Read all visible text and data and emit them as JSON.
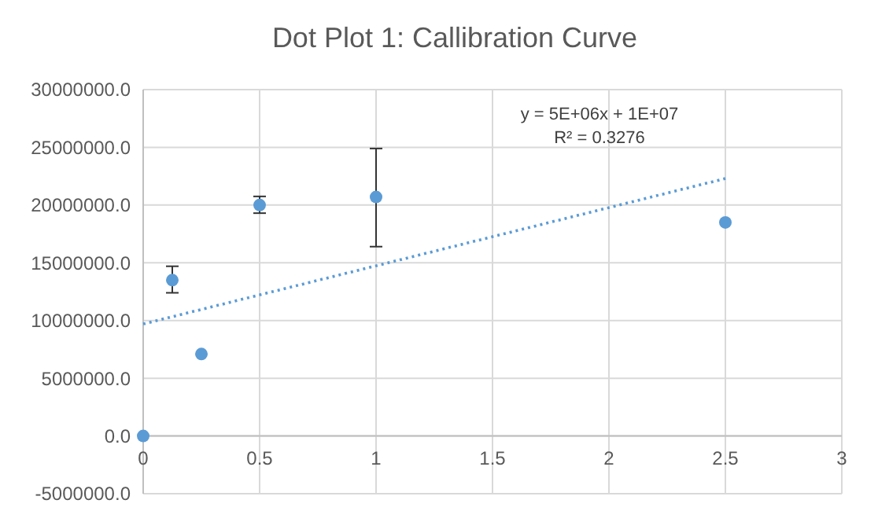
{
  "chart_data": {
    "type": "scatter",
    "title": "Dot Plot 1: Callibration Curve",
    "marker": "circle",
    "grid": true,
    "xlim": [
      0,
      3
    ],
    "xticks": [
      0,
      0.5,
      1,
      1.5,
      2,
      2.5,
      3
    ],
    "ylim": [
      -5000000,
      30000000
    ],
    "yticks": [
      {
        "value": -5000000,
        "label": "-5000000.0"
      },
      {
        "value": 0,
        "label": "0.0"
      },
      {
        "value": 5000000,
        "label": "5000000.0"
      },
      {
        "value": 10000000,
        "label": "10000000.0"
      },
      {
        "value": 15000000,
        "label": "15000000.0"
      },
      {
        "value": 20000000,
        "label": "20000000.0"
      },
      {
        "value": 25000000,
        "label": "25000000.0"
      },
      {
        "value": 30000000,
        "label": "30000000.0"
      }
    ],
    "series": [
      {
        "color": "#5b9bd5",
        "x": [
          0,
          0.125,
          0.25,
          0.5,
          1,
          2.5
        ],
        "values": [
          0,
          13500000,
          7100000,
          20000000,
          20700000,
          18500000
        ],
        "errors": [
          null,
          [
            12400000,
            14700000
          ],
          null,
          [
            19300000,
            20750000
          ],
          [
            16400000,
            24900000
          ],
          null
        ]
      },
      {
        "type": "line",
        "color": "#5b9bd5",
        "line_style": "dotted",
        "marker": "none",
        "x": [
          0,
          2.5
        ],
        "values": [
          9700000,
          22300000
        ]
      }
    ],
    "annotations": [
      "y = 5E+06x + 1E+07",
      "R² = 0.3276"
    ]
  }
}
